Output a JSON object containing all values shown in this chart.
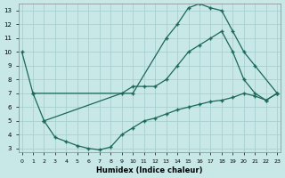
{
  "background_color": "#c8e8e8",
  "grid_color": "#a8d0d0",
  "line_color": "#1a6858",
  "xlabel": "Humidex (Indice chaleur)",
  "xlim": [
    -0.3,
    23.3
  ],
  "ylim": [
    2.7,
    13.5
  ],
  "yticks": [
    3,
    4,
    5,
    6,
    7,
    8,
    9,
    10,
    11,
    12,
    13
  ],
  "xticks": [
    0,
    1,
    2,
    3,
    4,
    5,
    6,
    7,
    8,
    9,
    10,
    11,
    12,
    13,
    14,
    15,
    16,
    17,
    18,
    19,
    20,
    21,
    22,
    23
  ],
  "curve1_x": [
    0,
    1,
    10,
    13,
    14,
    15,
    16,
    17,
    18,
    19,
    20,
    21,
    23
  ],
  "curve1_y": [
    10,
    7,
    7,
    11,
    12,
    13.2,
    13.5,
    13.2,
    13.0,
    11.5,
    10.0,
    9.0,
    7.0
  ],
  "curve2_x": [
    1,
    2,
    9,
    10,
    11,
    12,
    13,
    14,
    15,
    16,
    17,
    18,
    19,
    20,
    21,
    22,
    23
  ],
  "curve2_y": [
    7,
    5,
    7,
    7.5,
    7.5,
    7.5,
    8.0,
    9.0,
    10.0,
    10.5,
    11.0,
    11.5,
    10.0,
    8.0,
    7.0,
    6.5,
    7.0
  ],
  "curve3_x": [
    2,
    3,
    4,
    5,
    6,
    7,
    8,
    9,
    10,
    11,
    12,
    13,
    14,
    15,
    16,
    17,
    18,
    19,
    20,
    21,
    22,
    23
  ],
  "curve3_y": [
    5,
    3.8,
    3.5,
    3.2,
    3.0,
    2.9,
    3.1,
    4.0,
    4.5,
    5.0,
    5.2,
    5.5,
    5.8,
    6.0,
    6.2,
    6.4,
    6.5,
    6.7,
    7.0,
    6.8,
    6.5,
    7.0
  ]
}
